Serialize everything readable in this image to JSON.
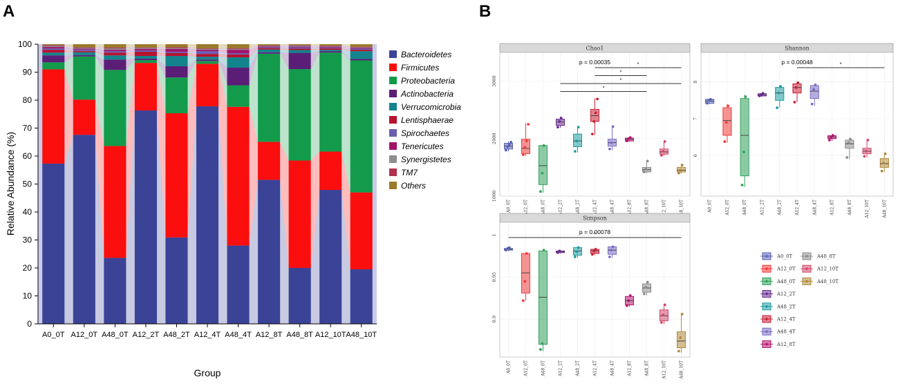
{
  "panels": {
    "a_letter": "A",
    "b_letter": "B"
  },
  "chart_data": [
    {
      "type": "bar",
      "stacked": true,
      "title": "",
      "xlabel": "Group",
      "ylabel": "Relative Abundance (%)",
      "ylim": [
        0,
        100
      ],
      "yticks": [
        "0",
        "10",
        "20",
        "30",
        "40",
        "50",
        "60",
        "70",
        "80",
        "90",
        "100"
      ],
      "categories": [
        "A0_0T",
        "A12_0T",
        "A48_0T",
        "A12_2T",
        "A48_2T",
        "A12_4T",
        "A48_4T",
        "A12_8T",
        "A48_8T",
        "A12_10T",
        "A48_10T"
      ],
      "series": [
        {
          "name": "Bacteroidetes",
          "color": "#3b4397",
          "values": [
            57.3,
            67.6,
            23.6,
            76.3,
            30.9,
            77.8,
            28.0,
            51.5,
            20.0,
            47.9,
            19.5
          ]
        },
        {
          "name": "Firmicutes",
          "color": "#fb0e0e",
          "values": [
            33.7,
            12.6,
            40.0,
            17.0,
            44.4,
            15.2,
            49.6,
            13.6,
            38.4,
            13.7,
            27.5
          ]
        },
        {
          "name": "Proteobacteria",
          "color": "#139b4b",
          "values": [
            2.5,
            15.4,
            27.2,
            1.0,
            12.8,
            1.0,
            7.7,
            31.5,
            32.7,
            35.4,
            47.2
          ]
        },
        {
          "name": "Actinobacteria",
          "color": "#5b1e77",
          "values": [
            2.5,
            0.5,
            3.7,
            0.5,
            4.0,
            0.5,
            6.3,
            0.5,
            5.8,
            0.5,
            0.5
          ]
        },
        {
          "name": "Verrucomicrobia",
          "color": "#14848c",
          "values": [
            1.0,
            1.0,
            1.5,
            1.0,
            3.7,
            1.0,
            3.7,
            1.0,
            1.0,
            0.5,
            2.8
          ]
        },
        {
          "name": "Lentisphaerae",
          "color": "#b8122e",
          "values": [
            1.0,
            0.5,
            1.0,
            1.5,
            1.0,
            1.0,
            1.0,
            0.5,
            0.5,
            0.5,
            0.5
          ]
        },
        {
          "name": "Spirochaetes",
          "color": "#6b5fb0",
          "values": [
            0.5,
            0.5,
            0.5,
            0.5,
            0.5,
            1.0,
            0.5,
            0.3,
            0.5,
            0.3,
            0.4
          ]
        },
        {
          "name": "Tenericutes",
          "color": "#a0146a",
          "values": [
            0.5,
            0.3,
            0.5,
            0.5,
            1.0,
            0.5,
            1.2,
            0.3,
            0.3,
            0.3,
            0.3
          ]
        },
        {
          "name": "Synergistetes",
          "color": "#8e8e8e",
          "values": [
            0.4,
            0.3,
            0.5,
            0.3,
            0.3,
            0.3,
            0.3,
            0.2,
            0.3,
            0.2,
            0.2
          ]
        },
        {
          "name": "TM7",
          "color": "#b03050",
          "values": [
            0.3,
            0.2,
            0.3,
            0.2,
            0.3,
            0.2,
            0.3,
            0.2,
            0.2,
            0.2,
            0.2
          ]
        },
        {
          "name": "Others",
          "color": "#9a7a2a",
          "values": [
            0.3,
            1.1,
            1.2,
            1.2,
            1.1,
            1.5,
            1.4,
            0.4,
            0.3,
            0.5,
            0.9
          ]
        }
      ]
    },
    {
      "type": "box",
      "title": "Chao1",
      "annotation": "p = 0.00035",
      "significance_marker": "*",
      "categories": [
        "A0_0T",
        "A12_0T",
        "A48_0T",
        "A12_2T",
        "A48_2T",
        "A12_4T",
        "A48_4T",
        "A12_8T",
        "A48_8T",
        "A12_10T",
        "A48_10T"
      ],
      "ylim": [
        1000,
        3500
      ],
      "yticks": [
        1000,
        2000,
        3000
      ],
      "boxes": [
        {
          "q1": 1820,
          "median": 1870,
          "q3": 1920,
          "low": 1780,
          "high": 1950,
          "points": [
            1800,
            1860,
            1900,
            1940
          ]
        },
        {
          "q1": 1740,
          "median": 1830,
          "q3": 1990,
          "low": 1700,
          "high": 2270,
          "points": [
            1720,
            1850,
            1960,
            2250
          ]
        },
        {
          "q1": 1200,
          "median": 1530,
          "q3": 1880,
          "low": 1060,
          "high": 1900,
          "points": [
            1080,
            1400,
            1880
          ]
        },
        {
          "q1": 2230,
          "median": 2290,
          "q3": 2340,
          "low": 2190,
          "high": 2380,
          "points": [
            2200,
            2300,
            2360
          ]
        },
        {
          "q1": 1860,
          "median": 1960,
          "q3": 2080,
          "low": 1760,
          "high": 2210,
          "points": [
            1780,
            1960,
            2200
          ]
        },
        {
          "q1": 2300,
          "median": 2400,
          "q3": 2510,
          "low": 2060,
          "high": 2700,
          "points": [
            2080,
            2300,
            2450,
            2690
          ]
        },
        {
          "q1": 1870,
          "median": 1930,
          "q3": 1990,
          "low": 1800,
          "high": 2220,
          "points": [
            1820,
            1930,
            2210
          ]
        },
        {
          "q1": 1960,
          "median": 1990,
          "q3": 2010,
          "low": 1950,
          "high": 2030,
          "points": [
            1960,
            2000,
            2020
          ]
        },
        {
          "q1": 1420,
          "median": 1460,
          "q3": 1500,
          "low": 1400,
          "high": 1620,
          "points": [
            1420,
            1470,
            1610
          ]
        },
        {
          "q1": 1730,
          "median": 1770,
          "q3": 1820,
          "low": 1700,
          "high": 1960,
          "points": [
            1710,
            1780,
            1950
          ]
        },
        {
          "q1": 1420,
          "median": 1450,
          "q3": 1500,
          "low": 1390,
          "high": 1560,
          "points": [
            1400,
            1450,
            1540
          ]
        }
      ],
      "comparisons": [
        {
          "from": "A12_4T",
          "to": "A48_10T",
          "label": "*"
        },
        {
          "from": "A12_4T",
          "to": "A48_8T",
          "label": "*"
        },
        {
          "from": "A12_2T",
          "to": "A48_10T",
          "label": "*"
        },
        {
          "from": "A12_2T",
          "to": "A48_8T",
          "label": "*"
        }
      ]
    },
    {
      "type": "box",
      "title": "Shannon",
      "annotation": "p = 0.00048",
      "significance_marker": "*",
      "categories": [
        "A0_0T",
        "A12_0T",
        "A48_0T",
        "A12_2T",
        "A48_2T",
        "A12_4T",
        "A48_4T",
        "A12_8T",
        "A48_8T",
        "A12_10T",
        "A48_10T"
      ],
      "ylim": [
        4.9,
        8.8
      ],
      "yticks": [
        6,
        7,
        8
      ],
      "boxes": [
        {
          "q1": 7.42,
          "median": 7.48,
          "q3": 7.53,
          "low": 7.4,
          "high": 7.55,
          "points": [
            7.42,
            7.5,
            7.53
          ]
        },
        {
          "q1": 6.55,
          "median": 6.95,
          "q3": 7.3,
          "low": 6.35,
          "high": 7.4,
          "points": [
            6.38,
            6.9,
            7.35
          ]
        },
        {
          "q1": 5.45,
          "median": 6.55,
          "q3": 7.55,
          "low": 5.15,
          "high": 7.65,
          "points": [
            5.2,
            6.1,
            7.6
          ]
        },
        {
          "q1": 7.62,
          "median": 7.65,
          "q3": 7.68,
          "low": 7.6,
          "high": 7.7,
          "points": [
            7.62,
            7.66,
            7.69
          ]
        },
        {
          "q1": 7.5,
          "median": 7.7,
          "q3": 7.85,
          "low": 7.3,
          "high": 7.9,
          "points": [
            7.3,
            7.7,
            7.88
          ]
        },
        {
          "q1": 7.7,
          "median": 7.85,
          "q3": 7.95,
          "low": 7.45,
          "high": 8.0,
          "points": [
            7.45,
            7.85,
            7.98
          ]
        },
        {
          "q1": 7.55,
          "median": 7.75,
          "q3": 7.9,
          "low": 7.35,
          "high": 7.95,
          "points": [
            7.4,
            7.8,
            7.92
          ]
        },
        {
          "q1": 6.46,
          "median": 6.5,
          "q3": 6.54,
          "low": 6.4,
          "high": 6.56,
          "points": [
            6.42,
            6.5,
            6.55
          ]
        },
        {
          "q1": 6.2,
          "median": 6.32,
          "q3": 6.42,
          "low": 5.9,
          "high": 6.48,
          "points": [
            5.95,
            6.35,
            6.45
          ]
        },
        {
          "q1": 6.05,
          "median": 6.12,
          "q3": 6.2,
          "low": 5.95,
          "high": 6.45,
          "points": [
            5.98,
            6.12,
            6.42
          ]
        },
        {
          "q1": 5.68,
          "median": 5.78,
          "q3": 5.92,
          "low": 5.55,
          "high": 6.05,
          "points": [
            5.58,
            5.8,
            6.05
          ]
        }
      ],
      "comparisons": [
        {
          "from": "A12_4T",
          "to": "A48_10T",
          "label": "*"
        }
      ]
    },
    {
      "type": "box",
      "title": "Simpson",
      "annotation": "p = 0.00078",
      "significance_marker": "*",
      "categories": [
        "A0_0T",
        "A12_0T",
        "A48_0T",
        "A12_2T",
        "A48_2T",
        "A12_4T",
        "A48_4T",
        "A12_8T",
        "A48_8T",
        "A12_10T",
        "A48_10T"
      ],
      "ylim": [
        0.855,
        1.015
      ],
      "yticks": [
        0.9,
        0.95,
        1.0
      ],
      "ytick_labels": [
        "0.90",
        "0.95",
        "1.00"
      ],
      "boxes": [
        {
          "q1": 0.982,
          "median": 0.983,
          "q3": 0.984,
          "low": 0.981,
          "high": 0.985,
          "points": [
            0.982,
            0.984,
            0.985
          ]
        },
        {
          "q1": 0.931,
          "median": 0.955,
          "q3": 0.978,
          "low": 0.922,
          "high": 0.979,
          "points": [
            0.922,
            0.945,
            0.978
          ]
        },
        {
          "q1": 0.87,
          "median": 0.926,
          "q3": 0.981,
          "low": 0.862,
          "high": 0.983,
          "points": [
            0.864,
            0.871,
            0.982
          ]
        },
        {
          "q1": 0.979,
          "median": 0.98,
          "q3": 0.981,
          "low": 0.978,
          "high": 0.982,
          "points": [
            0.979,
            0.981
          ]
        },
        {
          "q1": 0.976,
          "median": 0.981,
          "q3": 0.985,
          "low": 0.973,
          "high": 0.986,
          "points": [
            0.974,
            0.98,
            0.985
          ]
        },
        {
          "q1": 0.978,
          "median": 0.981,
          "q3": 0.983,
          "low": 0.976,
          "high": 0.984,
          "points": [
            0.977,
            0.981,
            0.983
          ]
        },
        {
          "q1": 0.977,
          "median": 0.982,
          "q3": 0.986,
          "low": 0.973,
          "high": 0.987,
          "points": [
            0.974,
            0.982,
            0.986
          ]
        },
        {
          "q1": 0.917,
          "median": 0.922,
          "q3": 0.927,
          "low": 0.915,
          "high": 0.929,
          "points": [
            0.916,
            0.922,
            0.928
          ]
        },
        {
          "q1": 0.932,
          "median": 0.937,
          "q3": 0.942,
          "low": 0.928,
          "high": 0.945,
          "points": [
            0.93,
            0.938,
            0.944
          ]
        },
        {
          "q1": 0.898,
          "median": 0.904,
          "q3": 0.911,
          "low": 0.894,
          "high": 0.918,
          "points": [
            0.896,
            0.905,
            0.917
          ]
        },
        {
          "q1": 0.866,
          "median": 0.874,
          "q3": 0.885,
          "low": 0.86,
          "high": 0.906,
          "points": [
            0.862,
            0.878,
            0.906
          ]
        }
      ],
      "comparisons": [
        {
          "from": "A0_0T",
          "to": "A48_10T",
          "label": "*"
        }
      ]
    }
  ],
  "box_legend": {
    "items": [
      {
        "label": "A0_0T",
        "color": "#5a62b5"
      },
      {
        "label": "A12_0T",
        "color": "#ef3b3b"
      },
      {
        "label": "A48_0T",
        "color": "#2fa05a"
      },
      {
        "label": "A12_2T",
        "color": "#6a2c8e"
      },
      {
        "label": "A48_2T",
        "color": "#1b9ca3"
      },
      {
        "label": "A12_4T",
        "color": "#c81e34"
      },
      {
        "label": "A48_4T",
        "color": "#7a6cc2"
      },
      {
        "label": "A12_8T",
        "color": "#b5136e"
      },
      {
        "label": "A48_8T",
        "color": "#8c8c8c"
      },
      {
        "label": "A12_10T",
        "color": "#d1476c"
      },
      {
        "label": "A48_10T",
        "color": "#b08838"
      }
    ]
  }
}
